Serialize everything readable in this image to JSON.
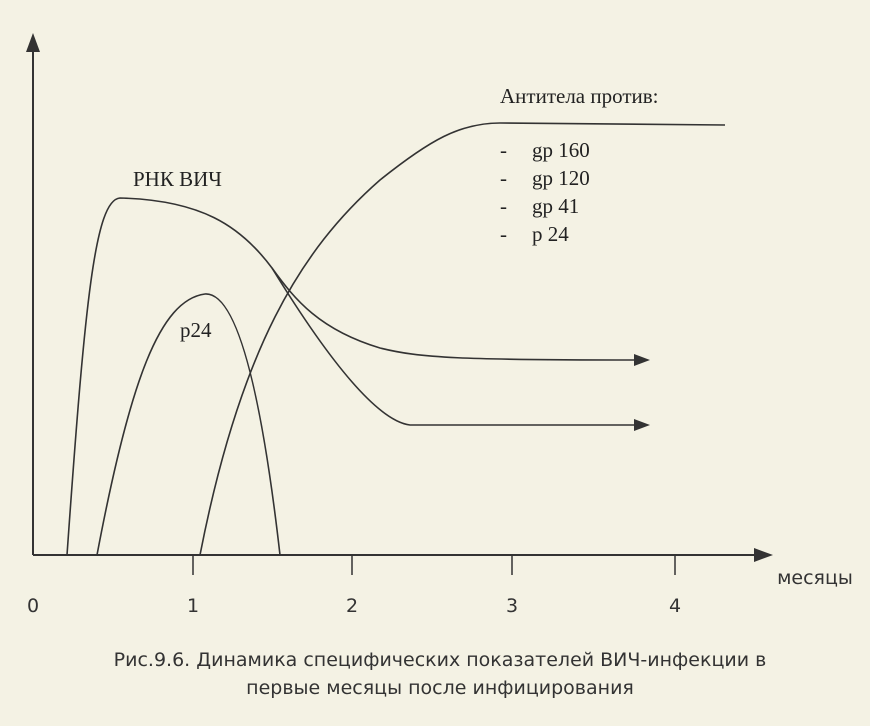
{
  "curves": {
    "rna": "РНК ВИЧ",
    "p24": "p24"
  },
  "antibodies": {
    "title": "Антитела против:",
    "bullet": "-",
    "items": [
      "gp 160",
      "gp 120",
      "gp 41",
      "p 24"
    ]
  },
  "axis": {
    "ticks": [
      "0",
      "1",
      "2",
      "3",
      "4"
    ],
    "label": "месяцы"
  },
  "caption": [
    "Рис.9.6. Динамика специфических показателей ВИЧ-инфекции в",
    "первые месяцы после инфицирования"
  ]
}
